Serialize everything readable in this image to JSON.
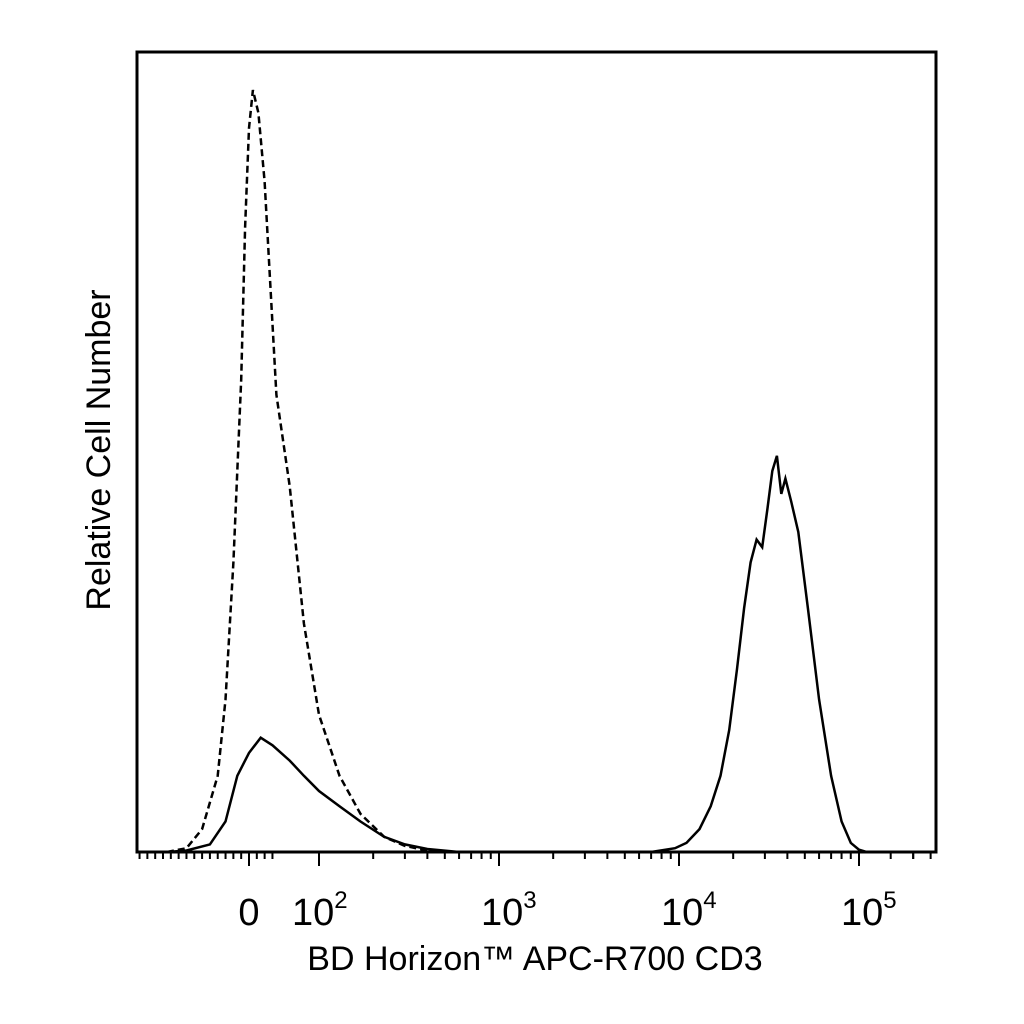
{
  "chart_data": {
    "type": "line",
    "title": "",
    "xlabel": "BD Horizon™ APC-R700 CD3",
    "ylabel": "Relative Cell Number",
    "x_scale": "biexponential",
    "xlim": [
      -150,
      260000
    ],
    "ylim": [
      0,
      1
    ],
    "grid": false,
    "legend": "none",
    "x_tick_labels": [
      {
        "value": 0,
        "base": "0",
        "exp": ""
      },
      {
        "value": 100,
        "base": "10",
        "exp": "2"
      },
      {
        "value": 1000,
        "base": "10",
        "exp": "3"
      },
      {
        "value": 10000,
        "base": "10",
        "exp": "4"
      },
      {
        "value": 100000,
        "base": "10",
        "exp": "5"
      }
    ],
    "series": [
      {
        "style": "dashed",
        "points": [
          [
            -150,
            0
          ],
          [
            -80,
            0.005
          ],
          [
            -60,
            0.03
          ],
          [
            -40,
            0.1
          ],
          [
            -30,
            0.2
          ],
          [
            -20,
            0.38
          ],
          [
            -10,
            0.62
          ],
          [
            -5,
            0.82
          ],
          [
            0,
            0.95
          ],
          [
            5,
            1.0
          ],
          [
            12,
            0.97
          ],
          [
            20,
            0.88
          ],
          [
            35,
            0.6
          ],
          [
            50,
            0.48
          ],
          [
            70,
            0.3
          ],
          [
            100,
            0.18
          ],
          [
            130,
            0.1
          ],
          [
            170,
            0.05
          ],
          [
            230,
            0.02
          ],
          [
            300,
            0.008
          ],
          [
            400,
            0.002
          ],
          [
            600,
            0
          ],
          [
            10000,
            0
          ],
          [
            50000,
            0
          ],
          [
            150000,
            0
          ]
        ]
      },
      {
        "style": "solid",
        "points": [
          [
            -150,
            0
          ],
          [
            -80,
            0.002
          ],
          [
            -50,
            0.01
          ],
          [
            -30,
            0.04
          ],
          [
            -15,
            0.1
          ],
          [
            0,
            0.13
          ],
          [
            15,
            0.15
          ],
          [
            30,
            0.14
          ],
          [
            50,
            0.12
          ],
          [
            70,
            0.1
          ],
          [
            100,
            0.08
          ],
          [
            130,
            0.06
          ],
          [
            170,
            0.04
          ],
          [
            230,
            0.02
          ],
          [
            300,
            0.01
          ],
          [
            400,
            0.004
          ],
          [
            600,
            0
          ],
          [
            7000,
            0
          ],
          [
            9500,
            0.005
          ],
          [
            11000,
            0.012
          ],
          [
            13000,
            0.03
          ],
          [
            15000,
            0.06
          ],
          [
            17000,
            0.1
          ],
          [
            19000,
            0.16
          ],
          [
            21000,
            0.24
          ],
          [
            23000,
            0.32
          ],
          [
            25000,
            0.38
          ],
          [
            27000,
            0.41
          ],
          [
            29000,
            0.4
          ],
          [
            31000,
            0.45
          ],
          [
            33000,
            0.5
          ],
          [
            35000,
            0.52
          ],
          [
            37000,
            0.47
          ],
          [
            39000,
            0.49
          ],
          [
            42000,
            0.46
          ],
          [
            46000,
            0.42
          ],
          [
            52000,
            0.32
          ],
          [
            60000,
            0.2
          ],
          [
            70000,
            0.1
          ],
          [
            80000,
            0.04
          ],
          [
            90000,
            0.012
          ],
          [
            100000,
            0.003
          ],
          [
            110000,
            0
          ]
        ]
      }
    ]
  }
}
